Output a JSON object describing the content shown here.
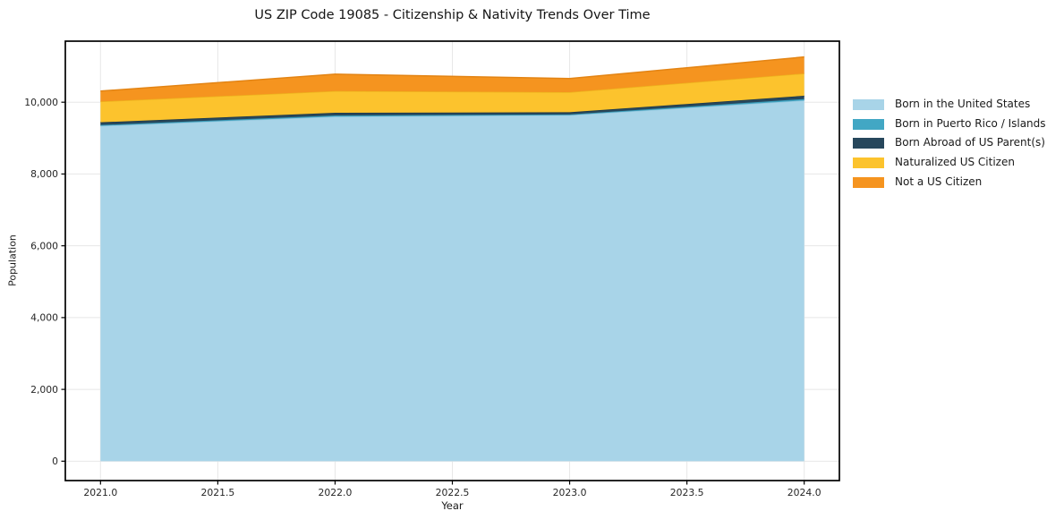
{
  "chart_data": {
    "type": "area",
    "stacked": true,
    "title": "US ZIP Code 19085 - Citizenship & Nativity Trends Over Time",
    "xlabel": "Year",
    "ylabel": "Population",
    "x": [
      2021,
      2022,
      2023,
      2024
    ],
    "series": [
      {
        "name": "Born in the United States",
        "color": "#a8d4e8",
        "edge": "#93c6dd",
        "values": [
          9340,
          9600,
          9640,
          10050
        ]
      },
      {
        "name": "Born in Puerto Rico / Islands",
        "color": "#42a7c4",
        "edge": "#3696b3",
        "values": [
          25,
          30,
          20,
          40
        ]
      },
      {
        "name": "Born Abroad of US Parent(s)",
        "color": "#27475c",
        "edge": "#1d3849",
        "values": [
          75,
          75,
          60,
          90
        ]
      },
      {
        "name": "Naturalized US Citizen",
        "color": "#fcc32d",
        "edge": "#edb31d",
        "values": [
          580,
          605,
          560,
          620
        ]
      },
      {
        "name": "Not a US Citizen",
        "color": "#f5941f",
        "edge": "#e38414",
        "values": [
          290,
          470,
          380,
          460
        ]
      }
    ],
    "cumulative_tops": {
      "2021": [
        9340,
        9365,
        9440,
        10020,
        10310
      ],
      "2022": [
        9600,
        9630,
        9705,
        10310,
        10780
      ],
      "2023": [
        9640,
        9660,
        9720,
        10280,
        10660
      ],
      "2024": [
        10050,
        10090,
        10180,
        10800,
        11260
      ]
    },
    "axes": {
      "xlim": [
        2020.85,
        2024.15
      ],
      "ylim": [
        -540,
        11700
      ],
      "xticks": [
        2021.0,
        2021.5,
        2022.0,
        2022.5,
        2023.0,
        2023.5,
        2024.0
      ],
      "xtick_labels": [
        "2021.0",
        "2021.5",
        "2022.0",
        "2022.5",
        "2023.0",
        "2023.5",
        "2024.0"
      ],
      "yticks": [
        0,
        2000,
        4000,
        6000,
        8000,
        10000
      ],
      "ytick_labels": [
        "0",
        "2,000",
        "4,000",
        "6,000",
        "8,000",
        "10,000"
      ],
      "grid": true
    },
    "legend": {
      "position": "outside-right"
    },
    "colors": {
      "grid": "#e7e7e7",
      "spine": "#000000",
      "tick": "#000000",
      "title_text": "#151515",
      "tick_text": "#262626",
      "background": "#ffffff"
    }
  }
}
